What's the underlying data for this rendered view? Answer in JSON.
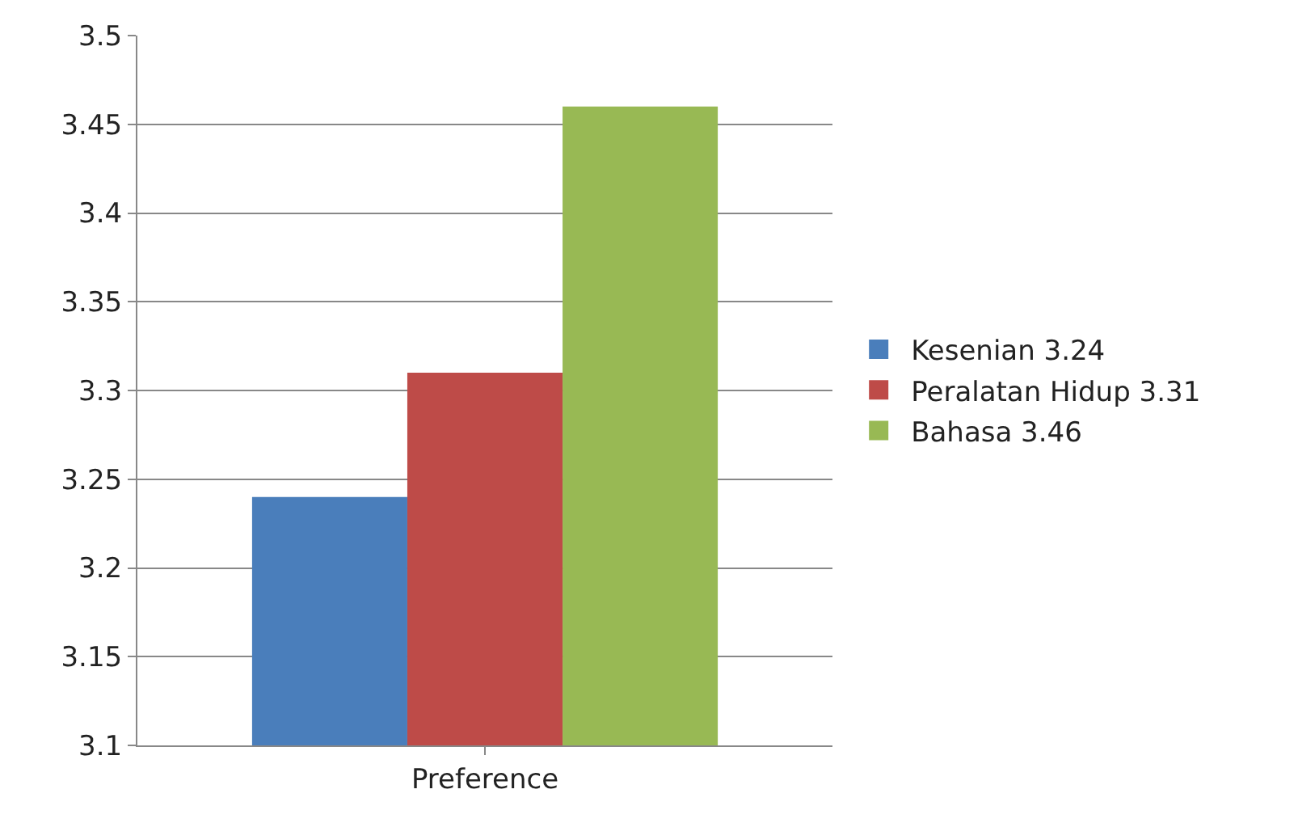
{
  "chart_data": {
    "type": "bar",
    "categories": [
      "Preference"
    ],
    "series": [
      {
        "name": "Kesenian 3.24",
        "color": "#4a7ebb",
        "values": [
          3.24
        ]
      },
      {
        "name": "Peralatan Hidup 3.31",
        "color": "#be4b48",
        "values": [
          3.31
        ]
      },
      {
        "name": "Bahasa 3.46",
        "color": "#98b954",
        "values": [
          3.46
        ]
      }
    ],
    "ylim": [
      3.1,
      3.5
    ],
    "yticks": [
      3.1,
      3.15,
      3.2,
      3.25,
      3.3,
      3.35,
      3.4,
      3.45,
      3.5
    ],
    "grid": "y",
    "legend": "right"
  }
}
